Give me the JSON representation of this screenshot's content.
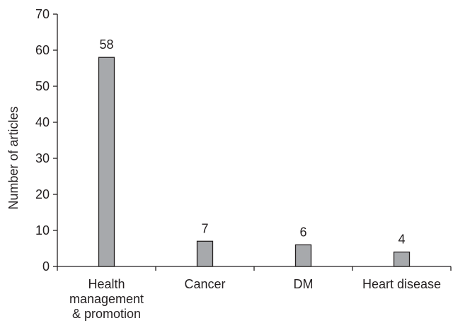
{
  "chart_data": {
    "type": "bar",
    "categories": [
      [
        "Health",
        "management",
        "& promotion"
      ],
      [
        "Cancer"
      ],
      [
        "DM"
      ],
      [
        "Heart disease"
      ]
    ],
    "values": [
      58,
      7,
      6,
      4
    ],
    "data_labels": [
      "58",
      "7",
      "6",
      "4"
    ],
    "title": "",
    "xlabel": "",
    "ylabel": "Number of articles",
    "ylim": [
      0,
      70
    ],
    "yticks": [
      0,
      10,
      20,
      30,
      40,
      50,
      60,
      70
    ],
    "grid": false,
    "legend": "none",
    "colors": {
      "bar_fill": "#a7a9ac",
      "bar_stroke": "#231f20",
      "axis": "#231f20",
      "text": "#231f20"
    }
  }
}
